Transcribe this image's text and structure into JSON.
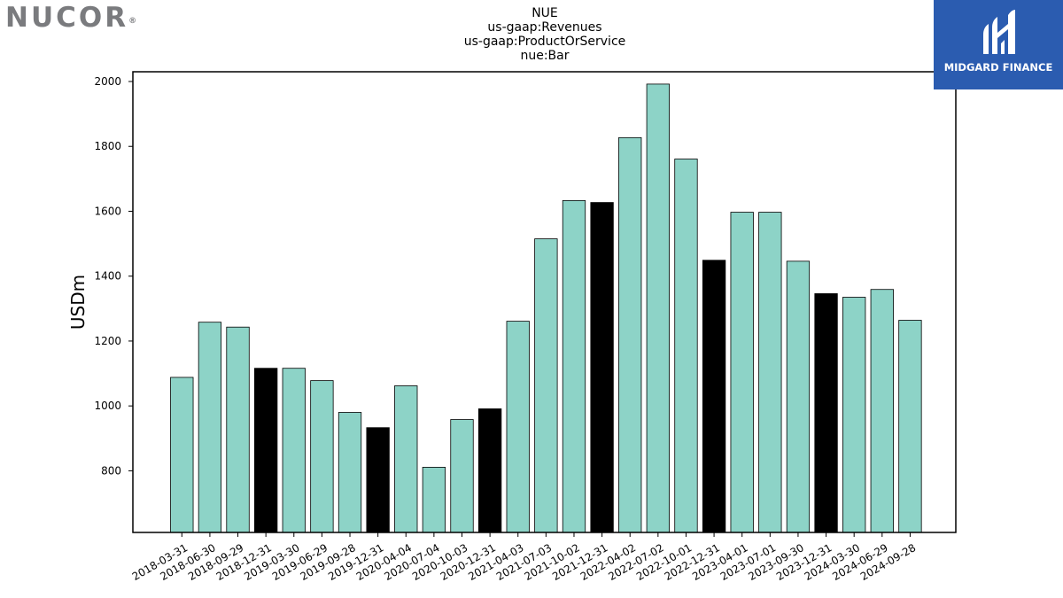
{
  "logo": {
    "brand": "NUCOR",
    "mark": "®"
  },
  "watermark": {
    "text": "MIDGARD FINANCE",
    "color": "#2b5cb0"
  },
  "chart_data": {
    "type": "bar",
    "title_lines": [
      "NUE",
      "us-gaap:Revenues",
      "us-gaap:ProductOrService",
      "nue:Bar"
    ],
    "ylabel": "USDm",
    "xlabel": "",
    "ylim": [
      610,
      2030
    ],
    "yticks": [
      800,
      1000,
      1200,
      1400,
      1600,
      1800,
      2000
    ],
    "grid": false,
    "bar_color": "#8dd3c7",
    "highlight_color": "#000000",
    "categories": [
      "2018-03-31",
      "2018-06-30",
      "2018-09-29",
      "2018-12-31",
      "2019-03-30",
      "2019-06-29",
      "2019-09-28",
      "2019-12-31",
      "2020-04-04",
      "2020-07-04",
      "2020-10-03",
      "2020-12-31",
      "2021-04-03",
      "2021-07-03",
      "2021-10-02",
      "2021-12-31",
      "2022-04-02",
      "2022-07-02",
      "2022-10-01",
      "2022-12-31",
      "2023-04-01",
      "2023-07-01",
      "2023-09-30",
      "2023-12-31",
      "2024-03-30",
      "2024-06-29",
      "2024-09-28"
    ],
    "values": [
      1088,
      1258,
      1243,
      1116,
      1116,
      1078,
      980,
      933,
      1062,
      811,
      958,
      991,
      1261,
      1515,
      1633,
      1627,
      1827,
      1992,
      1761,
      1449,
      1597,
      1597,
      1446,
      1346,
      1335,
      1359,
      1264
    ],
    "highlight": [
      false,
      false,
      false,
      true,
      false,
      false,
      false,
      true,
      false,
      false,
      false,
      true,
      false,
      false,
      false,
      true,
      false,
      false,
      false,
      true,
      false,
      false,
      false,
      true,
      false,
      false,
      false
    ]
  }
}
